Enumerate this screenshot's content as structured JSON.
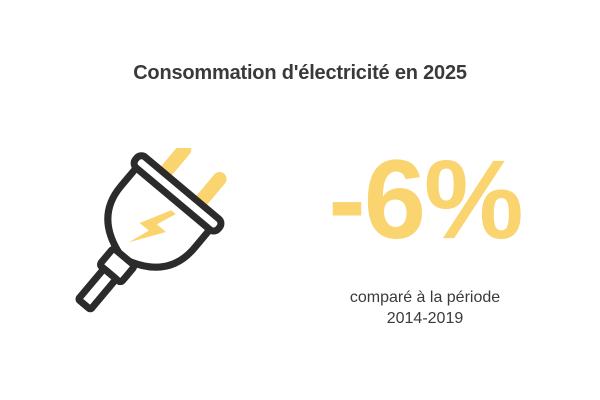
{
  "title": "Consommation d'électricité en 2025",
  "stat": {
    "value": "-6%",
    "caption_line1": "comparé à la période",
    "caption_line2": "2014-2019"
  },
  "illustration": {
    "icon": "electric-plug-icon",
    "accent_icon": "lightning-bolt-icon"
  },
  "colors": {
    "accent": "#f9d46f",
    "text": "#3a3a3a",
    "outline": "#2b2b2b",
    "background": "#ffffff"
  }
}
